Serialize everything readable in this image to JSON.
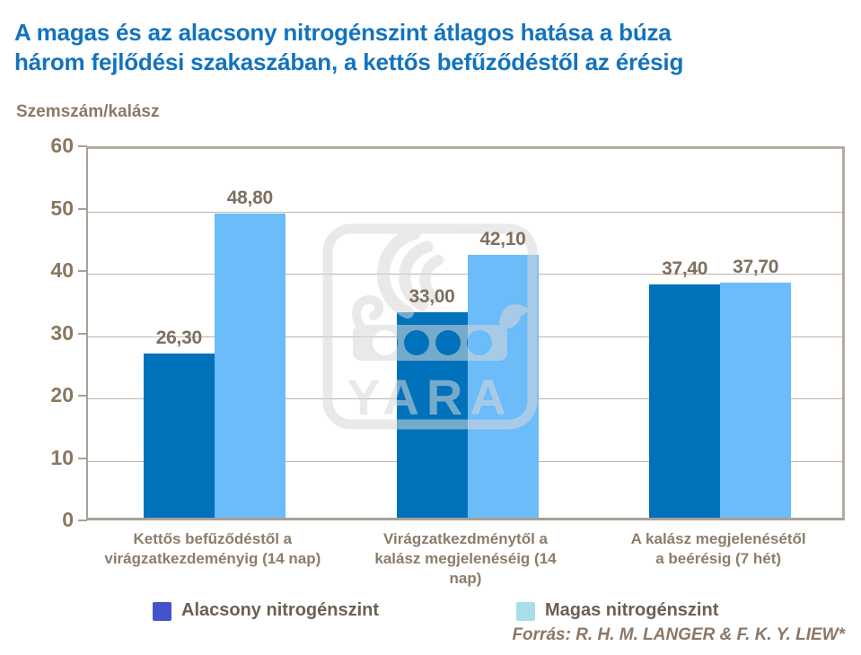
{
  "title": "A magas és az alacsony nitrogénszint átlagos hatása a búza három fejlődési szakaszában, a kettős befűződéstől az érésig",
  "title_lines": [
    "A magas és az alacsony nitrogénszint átlagos hatása a búza",
    "három fejlődési szakaszában, a kettős befűződéstől az érésig"
  ],
  "y_axis_label": "Szemszám/kalász",
  "source_note": "Forrás: R. H. M. LANGER & F. K. Y. LIEW*",
  "watermark_text": "YARA",
  "legend": {
    "items": [
      {
        "label": "Alacsony nitrogénszint",
        "swatch_color": "#4353CB"
      },
      {
        "label": "Magas nitrogénszint",
        "swatch_color": "#A8DDEA"
      }
    ]
  },
  "colors": {
    "title": "#1373BE",
    "axis_text": "#8A7760",
    "value_label": "#7D7060",
    "category_label": "#8C7C6A",
    "legend_text": "#6B6052",
    "source_text": "#8B7768",
    "grid": "#BDB4AA",
    "border": "#ACA39A",
    "bar_low": "#0072BC",
    "bar_high": "#6BBCF9"
  },
  "chart_data": {
    "type": "bar",
    "title": "A magas és az alacsony nitrogénszint átlagos hatása a búza három fejlődési szakaszában, a kettős befűződéstől az érésig",
    "ylabel": "Szemszám/kalász",
    "categories": [
      "Kettős befűződéstől a virágzatkezdeményig (14 nap)",
      "Virágzatkezdménytől a kalász megjelenéséig (14 nap)",
      "A kalász megjelenésétől a beérésig (7 hét)"
    ],
    "category_lines": [
      [
        "Kettős befűződéstől a",
        "virágzatkezdeményig (14 nap)"
      ],
      [
        "Virágzatkezdménytől a",
        "kalász megjelenéséig (14",
        "nap)"
      ],
      [
        "A kalász megjelenésétől",
        "a beérésig (7 hét)"
      ]
    ],
    "series": [
      {
        "name": "Alacsony nitrogénszint",
        "color": "#0072BC",
        "values": [
          26.3,
          33.0,
          37.4
        ],
        "value_labels": [
          "26,30",
          "33,00",
          "37,40"
        ]
      },
      {
        "name": "Magas nitrogénszint",
        "color": "#6BBCF9",
        "values": [
          48.8,
          42.1,
          37.7
        ],
        "value_labels": [
          "48,80",
          "42,10",
          "37,70"
        ]
      }
    ],
    "ylim": [
      0,
      60
    ],
    "yticks": [
      0,
      10,
      20,
      30,
      40,
      50,
      60
    ],
    "grid": true,
    "legend_position": "bottom"
  }
}
